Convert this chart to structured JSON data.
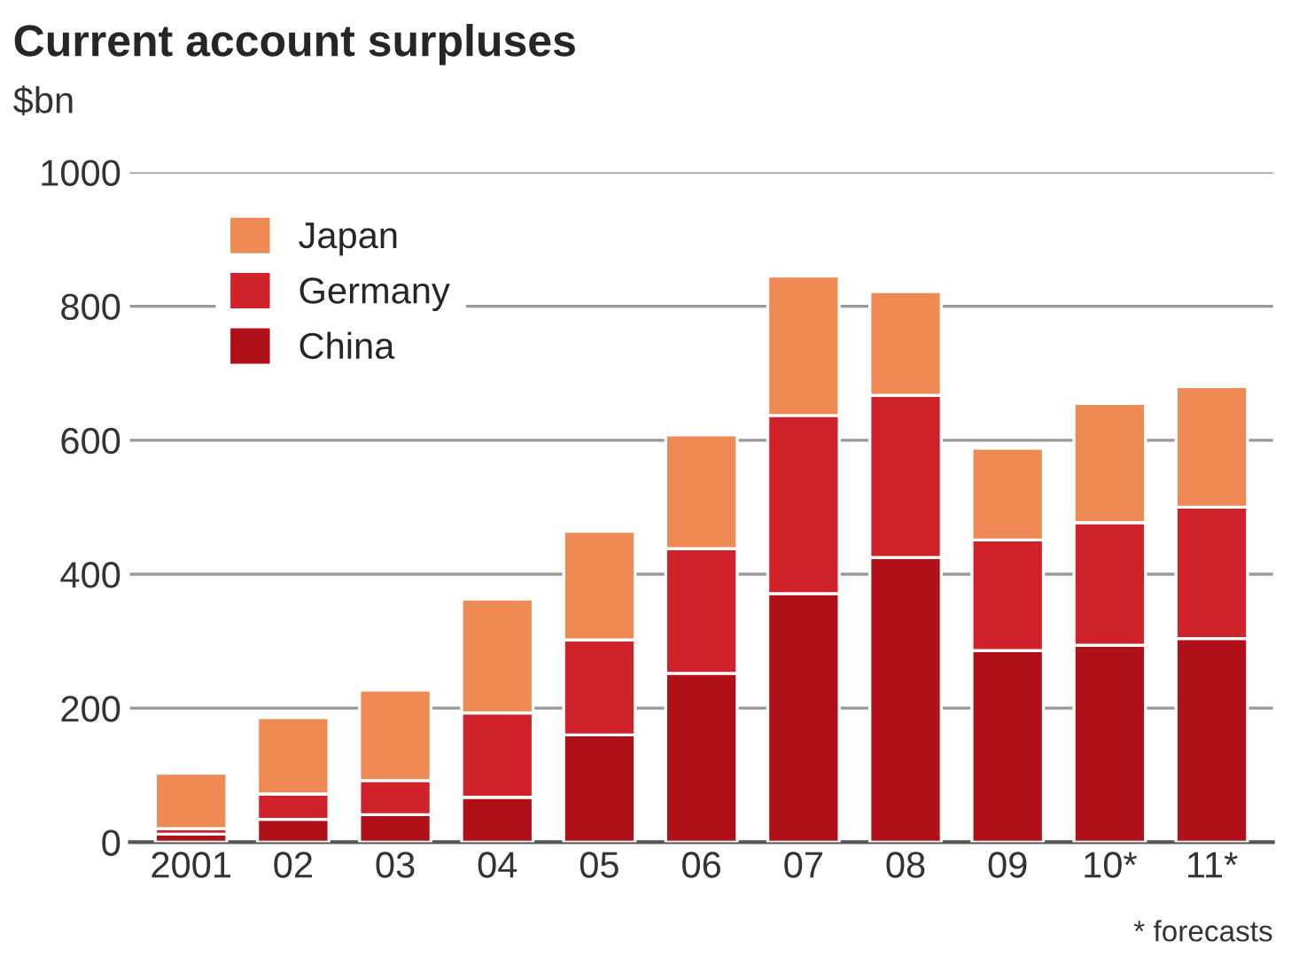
{
  "chart_data": {
    "type": "bar",
    "title": "Current account surpluses",
    "ylabel": "$bn",
    "categories": [
      "2001",
      "02",
      "03",
      "04",
      "05",
      "06",
      "07",
      "08",
      "09",
      "10*",
      "11*"
    ],
    "stacked": true,
    "series": [
      {
        "name": "China",
        "color": "#b01018",
        "values": [
          12,
          34,
          41,
          67,
          160,
          252,
          371,
          425,
          286,
          294,
          304
        ]
      },
      {
        "name": "Germany",
        "color": "#d0222a",
        "values": [
          8,
          38,
          51,
          126,
          142,
          186,
          266,
          242,
          165,
          183,
          196
        ]
      },
      {
        "name": "Japan",
        "color": "#f08a55",
        "values": [
          83,
          114,
          135,
          170,
          162,
          170,
          208,
          155,
          137,
          178,
          180
        ]
      }
    ],
    "ylim": [
      0,
      1000
    ],
    "yticks": [
      0,
      200,
      400,
      600,
      800,
      1000
    ],
    "grid": "y",
    "legend": "top left",
    "annotations": [
      "* forecasts"
    ]
  }
}
